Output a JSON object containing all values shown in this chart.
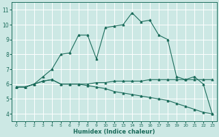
{
  "xlabel": "Humidex (Indice chaleur)",
  "bg_color": "#cce8e4",
  "grid_color": "#ffffff",
  "line_color": "#1a6b5a",
  "xlim": [
    0,
    23
  ],
  "ylim": [
    3.5,
    11.5
  ],
  "xticks": [
    0,
    1,
    2,
    3,
    4,
    5,
    6,
    7,
    8,
    9,
    10,
    12,
    13,
    14,
    15,
    16,
    17,
    18,
    19,
    20,
    21,
    22,
    23
  ],
  "xticklabels": [
    "0",
    "1",
    "2",
    "3",
    "4",
    "5",
    "6",
    "7",
    "8",
    "9",
    "10",
    "12",
    "13",
    "14",
    "15",
    "16",
    "17",
    "18",
    "19",
    "20",
    "21",
    "22",
    "23"
  ],
  "yticks": [
    4,
    5,
    6,
    7,
    8,
    9,
    10,
    11
  ],
  "series1_x": [
    0,
    1,
    2,
    3,
    4,
    5,
    6,
    7,
    8,
    9,
    10,
    12,
    13,
    14,
    15,
    16,
    17,
    18,
    19,
    20,
    21,
    22,
    23
  ],
  "series1_y": [
    5.8,
    5.8,
    6.0,
    6.2,
    6.3,
    6.0,
    6.0,
    6.0,
    6.0,
    6.1,
    6.1,
    6.2,
    6.2,
    6.2,
    6.2,
    6.3,
    6.3,
    6.3,
    6.3,
    6.3,
    6.3,
    6.3,
    6.3
  ],
  "series2_x": [
    0,
    1,
    2,
    3,
    4,
    5,
    6,
    7,
    8,
    9,
    10,
    12,
    13,
    14,
    15,
    16,
    17,
    18,
    19,
    20,
    21,
    22,
    23
  ],
  "series2_y": [
    5.8,
    5.8,
    6.0,
    6.2,
    6.3,
    6.0,
    6.0,
    6.0,
    5.9,
    5.8,
    5.7,
    5.5,
    5.4,
    5.3,
    5.2,
    5.1,
    5.0,
    4.9,
    4.7,
    4.5,
    4.3,
    4.1,
    4.0
  ],
  "series3_x": [
    0,
    1,
    2,
    3,
    4,
    5,
    6,
    7,
    8,
    9,
    10,
    12,
    13,
    14,
    15,
    16,
    17,
    18,
    19,
    20,
    21,
    22,
    23
  ],
  "series3_y": [
    5.8,
    5.8,
    6.0,
    6.5,
    7.0,
    8.0,
    8.1,
    9.3,
    9.3,
    7.7,
    9.8,
    9.9,
    10.0,
    10.8,
    10.2,
    10.3,
    9.3,
    9.0,
    6.5,
    6.3,
    6.5,
    6.0,
    4.0
  ]
}
